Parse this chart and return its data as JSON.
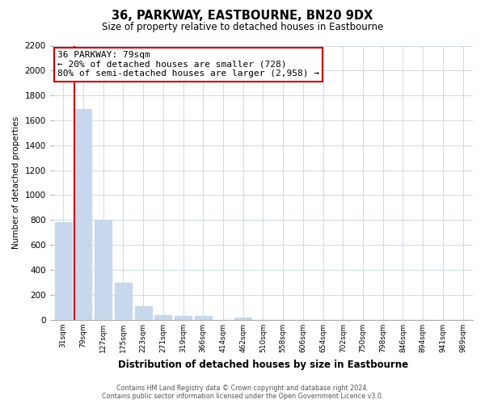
{
  "title": "36, PARKWAY, EASTBOURNE, BN20 9DX",
  "subtitle": "Size of property relative to detached houses in Eastbourne",
  "xlabel": "Distribution of detached houses by size in Eastbourne",
  "ylabel": "Number of detached properties",
  "categories": [
    "31sqm",
    "79sqm",
    "127sqm",
    "175sqm",
    "223sqm",
    "271sqm",
    "319sqm",
    "366sqm",
    "414sqm",
    "462sqm",
    "510sqm",
    "558sqm",
    "606sqm",
    "654sqm",
    "702sqm",
    "750sqm",
    "798sqm",
    "846sqm",
    "894sqm",
    "941sqm",
    "989sqm"
  ],
  "values": [
    780,
    1690,
    800,
    295,
    110,
    35,
    30,
    30,
    0,
    20,
    0,
    0,
    0,
    0,
    0,
    0,
    0,
    0,
    0,
    0,
    0
  ],
  "bar_color": "#c8d8ec",
  "vline_color": "#cc0000",
  "vline_bar_index": 1,
  "annotation_title": "36 PARKWAY: 79sqm",
  "annotation_line1": "← 20% of detached houses are smaller (728)",
  "annotation_line2": "80% of semi-detached houses are larger (2,958) →",
  "annotation_box_facecolor": "#ffffff",
  "annotation_box_edgecolor": "#cc0000",
  "ylim_max": 2200,
  "yticks": [
    0,
    200,
    400,
    600,
    800,
    1000,
    1200,
    1400,
    1600,
    1800,
    2000,
    2200
  ],
  "footer_line1": "Contains HM Land Registry data © Crown copyright and database right 2024.",
  "footer_line2": "Contains public sector information licensed under the Open Government Licence v3.0.",
  "grid_color": "#d0d8e4",
  "fig_width": 6.0,
  "fig_height": 5.0
}
